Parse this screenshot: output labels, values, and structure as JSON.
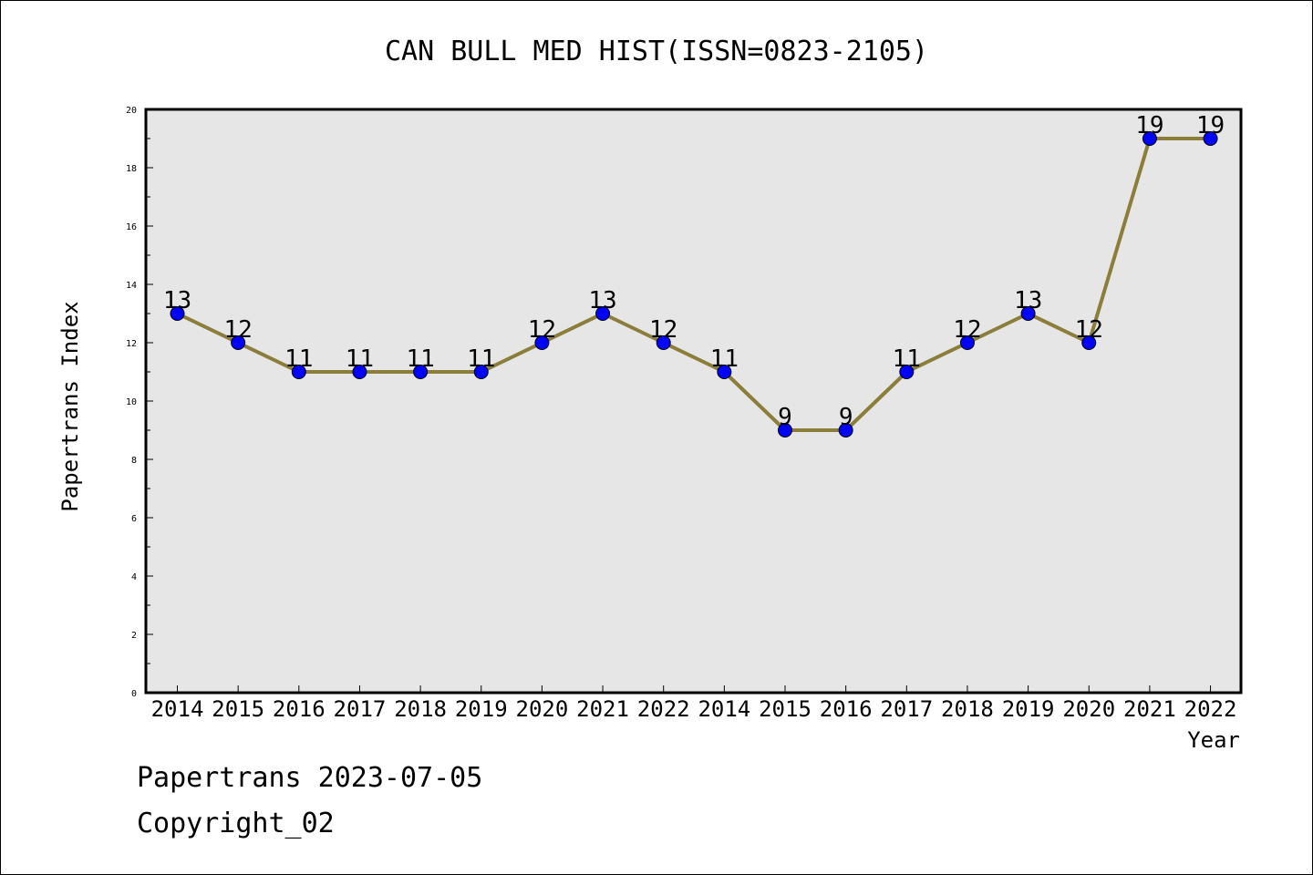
{
  "chart_data": {
    "type": "line",
    "title": "CAN BULL MED HIST(ISSN=0823-2105)",
    "xlabel": "Year",
    "ylabel": "Papertrans Index",
    "categories": [
      "2014",
      "2015",
      "2016",
      "2017",
      "2018",
      "2019",
      "2020",
      "2021",
      "2022",
      "2014",
      "2015",
      "2016",
      "2017",
      "2018",
      "2019",
      "2020",
      "2021",
      "2022"
    ],
    "series": [
      {
        "values": [
          13,
          12,
          11,
          11,
          11,
          11,
          12,
          13,
          12,
          11,
          9,
          9,
          11,
          12,
          13,
          12,
          19,
          19
        ]
      }
    ],
    "ylim": [
      0,
      20
    ],
    "yticks": [
      0,
      2,
      4,
      6,
      8,
      10,
      12,
      14,
      16,
      18,
      20
    ],
    "grid": false,
    "data_labels": true,
    "colors": {
      "line": "#8b7d3a",
      "marker": "#0000ff",
      "plot_bg": "#e6e6e6"
    }
  },
  "footer": {
    "line1": "Papertrans 2023-07-05",
    "line2": "Copyright_02"
  }
}
